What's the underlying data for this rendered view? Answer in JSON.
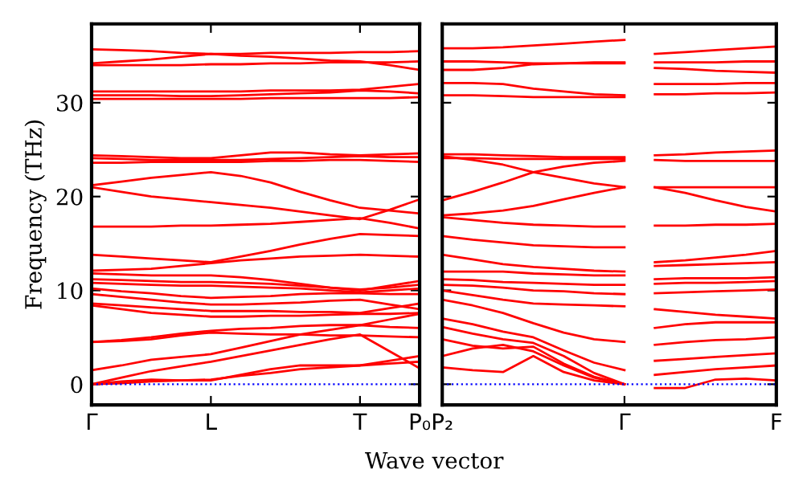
{
  "chart_data": [
    {
      "type": "line",
      "ylabel": "Frequency (THz)",
      "xlabel": "Wave vector",
      "categories": [
        "Γ",
        null,
        null,
        null,
        "L",
        null,
        null,
        null,
        null,
        "T",
        null,
        "P₀"
      ],
      "ylim": [
        -2.2,
        38.4
      ],
      "yticks": [
        0,
        10,
        20,
        30
      ],
      "grid": false,
      "legend": false,
      "line_style": "solid",
      "ref_lines": [
        {
          "axis": "y",
          "value": 0,
          "label": null,
          "color": "#0000ff",
          "line_style": "dotted"
        }
      ],
      "series": [
        {
          "color": "#ff0000",
          "values": [
            35.7,
            35.6,
            35.5,
            35.3,
            35.2,
            35.2,
            35.3,
            35.3,
            35.3,
            35.4,
            35.4,
            35.5
          ]
        },
        {
          "color": "#ff0000",
          "values": [
            34.2,
            34.4,
            34.6,
            34.9,
            35.2,
            35.0,
            34.9,
            34.7,
            34.5,
            34.4,
            34.0,
            33.5
          ]
        },
        {
          "color": "#ff0000",
          "values": [
            34.0,
            34.0,
            34.0,
            34.0,
            34.1,
            34.1,
            34.2,
            34.2,
            34.3,
            34.3,
            34.3,
            34.4
          ]
        },
        {
          "color": "#ff0000",
          "values": [
            31.2,
            31.2,
            31.2,
            31.2,
            31.2,
            31.2,
            31.3,
            31.3,
            31.3,
            31.4,
            31.7,
            32.0
          ]
        },
        {
          "color": "#ff0000",
          "values": [
            30.8,
            30.8,
            30.8,
            30.7,
            30.7,
            30.8,
            30.9,
            31.0,
            31.1,
            31.3,
            31.2,
            31.0
          ]
        },
        {
          "color": "#ff0000",
          "values": [
            30.4,
            30.4,
            30.4,
            30.4,
            30.4,
            30.4,
            30.5,
            30.5,
            30.5,
            30.5,
            30.5,
            30.6
          ]
        },
        {
          "color": "#ff0000",
          "values": [
            24.4,
            24.3,
            24.2,
            24.1,
            24.1,
            24.4,
            24.7,
            24.7,
            24.5,
            24.4,
            24.5,
            24.6
          ]
        },
        {
          "color": "#ff0000",
          "values": [
            24.1,
            24.0,
            23.9,
            23.9,
            23.9,
            23.9,
            24.0,
            24.1,
            24.2,
            24.3,
            24.2,
            24.2
          ]
        },
        {
          "color": "#ff0000",
          "values": [
            23.6,
            23.6,
            23.7,
            23.7,
            23.7,
            23.7,
            23.8,
            23.8,
            23.9,
            23.9,
            23.8,
            23.7
          ]
        },
        {
          "color": "#ff0000",
          "values": [
            21.2,
            21.6,
            22.0,
            22.3,
            22.6,
            22.2,
            21.5,
            20.5,
            19.6,
            18.8,
            18.5,
            18.2
          ]
        },
        {
          "color": "#ff0000",
          "values": [
            21.0,
            20.5,
            20.0,
            19.7,
            19.4,
            19.1,
            18.8,
            18.4,
            18.0,
            17.6,
            18.6,
            19.7
          ]
        },
        {
          "color": "#ff0000",
          "values": [
            16.8,
            16.8,
            16.8,
            16.9,
            16.9,
            17.0,
            17.1,
            17.3,
            17.5,
            17.7,
            17.2,
            16.6
          ]
        },
        {
          "color": "#ff0000",
          "values": [
            13.8,
            13.6,
            13.4,
            13.2,
            13.0,
            13.6,
            14.2,
            14.9,
            15.5,
            16.0,
            15.9,
            15.8
          ]
        },
        {
          "color": "#ff0000",
          "values": [
            12.1,
            12.2,
            12.3,
            12.6,
            12.9,
            13.2,
            13.4,
            13.6,
            13.7,
            13.8,
            13.7,
            13.6
          ]
        },
        {
          "color": "#ff0000",
          "values": [
            11.8,
            11.7,
            11.6,
            11.6,
            11.6,
            11.4,
            11.1,
            10.7,
            10.3,
            10.0,
            10.5,
            11.0
          ]
        },
        {
          "color": "#ff0000",
          "values": [
            11.2,
            11.1,
            11.0,
            10.9,
            10.9,
            10.8,
            10.7,
            10.5,
            10.3,
            10.1,
            10.3,
            10.6
          ]
        },
        {
          "color": "#ff0000",
          "values": [
            10.8,
            10.7,
            10.6,
            10.5,
            10.5,
            10.4,
            10.3,
            10.2,
            10.0,
            9.8,
            10.0,
            10.2
          ]
        },
        {
          "color": "#ff0000",
          "values": [
            10.2,
            9.9,
            9.7,
            9.4,
            9.2,
            9.3,
            9.4,
            9.6,
            9.7,
            9.7,
            9.6,
            9.6
          ]
        },
        {
          "color": "#ff0000",
          "values": [
            9.6,
            9.3,
            9.0,
            8.7,
            8.5,
            8.5,
            8.6,
            8.7,
            8.9,
            9.0,
            8.5,
            8.0
          ]
        },
        {
          "color": "#ff0000",
          "values": [
            8.6,
            8.4,
            8.2,
            8.0,
            7.8,
            7.8,
            7.8,
            7.7,
            7.7,
            7.6,
            8.1,
            8.6
          ]
        },
        {
          "color": "#ff0000",
          "values": [
            8.4,
            8.0,
            7.6,
            7.4,
            7.2,
            7.2,
            7.3,
            7.3,
            7.4,
            7.5,
            7.5,
            7.6
          ]
        },
        {
          "color": "#ff0000",
          "values": [
            4.5,
            4.7,
            5.0,
            5.4,
            5.7,
            5.9,
            6.0,
            6.2,
            6.3,
            6.3,
            6.9,
            7.5
          ]
        },
        {
          "color": "#ff0000",
          "values": [
            4.5,
            4.6,
            4.8,
            5.2,
            5.5,
            5.4,
            5.3,
            5.3,
            5.2,
            5.2,
            5.1,
            5.0
          ]
        },
        {
          "color": "#ff0000",
          "values": [
            1.5,
            2.0,
            2.6,
            2.9,
            3.2,
            3.9,
            4.6,
            5.3,
            5.8,
            6.3,
            6.1,
            6.0
          ]
        },
        {
          "color": "#ff0000",
          "values": [
            0,
            0.7,
            1.4,
            1.9,
            2.4,
            3.0,
            3.6,
            4.2,
            4.8,
            5.3,
            3.5,
            1.7
          ]
        },
        {
          "color": "#ff0000",
          "values": [
            0,
            0.3,
            0.5,
            0.4,
            0.4,
            1.0,
            1.6,
            2.0,
            2.0,
            2.0,
            2.5,
            3.0
          ]
        },
        {
          "color": "#ff0000",
          "values": [
            0,
            0.1,
            0.3,
            0.4,
            0.5,
            0.9,
            1.2,
            1.6,
            1.8,
            2.0,
            2.2,
            2.4
          ]
        }
      ]
    },
    {
      "type": "line",
      "categories": [
        "P₂",
        null,
        null,
        null,
        null,
        null,
        "Γ",
        null,
        null,
        null,
        null,
        "F"
      ],
      "ylim": [
        -2.2,
        38.4
      ],
      "yticks": [
        {
          "value": 0,
          "label": null
        },
        {
          "value": 10,
          "label": null
        },
        {
          "value": 20,
          "label": null
        },
        {
          "value": 30,
          "label": null
        }
      ],
      "tick_labels": "x",
      "grid": false,
      "legend": false,
      "line_style": "solid",
      "ref_lines": [
        {
          "axis": "y",
          "value": 0,
          "label": null,
          "color": "#0000ff",
          "line_style": "dotted"
        }
      ],
      "series": [
        {
          "color": "#ff0000",
          "values": [
            35.8,
            35.8,
            35.9,
            36.1,
            36.3,
            36.5,
            36.7,
            null,
            null,
            null,
            null,
            null
          ]
        },
        {
          "color": "#ff0000",
          "values": [
            34.4,
            34.4,
            34.3,
            34.2,
            34.2,
            34.2,
            34.2,
            null,
            null,
            null,
            null,
            null
          ]
        },
        {
          "color": "#ff0000",
          "values": [
            33.5,
            33.5,
            33.7,
            34.1,
            34.2,
            34.3,
            34.3,
            null,
            null,
            null,
            null,
            null
          ]
        },
        {
          "color": "#ff0000",
          "values": [
            32.1,
            32.1,
            32.0,
            31.5,
            31.2,
            30.9,
            30.8,
            null,
            null,
            null,
            null,
            null
          ]
        },
        {
          "color": "#ff0000",
          "values": [
            30.8,
            30.8,
            30.7,
            30.6,
            30.6,
            30.6,
            30.6,
            null,
            null,
            null,
            null,
            null
          ]
        },
        {
          "color": "#ff0000",
          "values": [
            24.5,
            24.5,
            24.4,
            24.3,
            24.2,
            24.2,
            24.2,
            null,
            null,
            null,
            null,
            null
          ]
        },
        {
          "color": "#ff0000",
          "values": [
            24.1,
            24.1,
            24.0,
            24.0,
            24.0,
            24.0,
            24.0,
            null,
            null,
            null,
            null,
            null
          ]
        },
        {
          "color": "#ff0000",
          "values": [
            24.3,
            23.9,
            23.4,
            22.6,
            22.0,
            21.4,
            21.0,
            null,
            null,
            null,
            null,
            null
          ]
        },
        {
          "color": "#ff0000",
          "values": [
            19.6,
            20.5,
            21.5,
            22.6,
            23.2,
            23.6,
            23.8,
            null,
            null,
            null,
            null,
            null
          ]
        },
        {
          "color": "#ff0000",
          "values": [
            18.0,
            18.2,
            18.5,
            19.0,
            19.7,
            20.4,
            21.0,
            null,
            null,
            null,
            null,
            null
          ]
        },
        {
          "color": "#ff0000",
          "values": [
            17.8,
            17.5,
            17.2,
            17.0,
            16.9,
            16.8,
            16.8,
            null,
            null,
            null,
            null,
            null
          ]
        },
        {
          "color": "#ff0000",
          "values": [
            15.8,
            15.4,
            15.1,
            14.8,
            14.7,
            14.6,
            14.6,
            null,
            null,
            null,
            null,
            null
          ]
        },
        {
          "color": "#ff0000",
          "values": [
            13.8,
            13.3,
            12.8,
            12.5,
            12.3,
            12.1,
            12.0,
            null,
            null,
            null,
            null,
            null
          ]
        },
        {
          "color": "#ff0000",
          "values": [
            12.0,
            12.0,
            12.0,
            11.8,
            11.7,
            11.6,
            11.6,
            null,
            null,
            null,
            null,
            null
          ]
        },
        {
          "color": "#ff0000",
          "values": [
            11.2,
            11.1,
            10.9,
            10.8,
            10.7,
            10.6,
            10.6,
            null,
            null,
            null,
            null,
            null
          ]
        },
        {
          "color": "#ff0000",
          "values": [
            10.6,
            10.5,
            10.3,
            10.0,
            9.9,
            9.7,
            9.6,
            null,
            null,
            null,
            null,
            null
          ]
        },
        {
          "color": "#ff0000",
          "values": [
            10.0,
            9.5,
            9.0,
            8.6,
            8.5,
            8.4,
            8.3,
            null,
            null,
            null,
            null,
            null
          ]
        },
        {
          "color": "#ff0000",
          "values": [
            9.0,
            8.4,
            7.6,
            6.5,
            5.5,
            4.8,
            4.5,
            null,
            null,
            null,
            null,
            null
          ]
        },
        {
          "color": "#ff0000",
          "values": [
            7.0,
            6.4,
            5.6,
            5.0,
            3.6,
            2.3,
            1.5,
            null,
            null,
            null,
            null,
            null
          ]
        },
        {
          "color": "#ff0000",
          "values": [
            6.1,
            5.4,
            4.8,
            4.4,
            3.0,
            1.2,
            0.0,
            null,
            null,
            null,
            null,
            null
          ]
        },
        {
          "color": "#ff0000",
          "values": [
            4.8,
            4.1,
            3.8,
            4.0,
            2.2,
            0.8,
            0.0,
            null,
            null,
            null,
            null,
            null
          ]
        },
        {
          "color": "#ff0000",
          "values": [
            3.0,
            3.8,
            4.2,
            3.5,
            2.0,
            0.7,
            0.0,
            null,
            null,
            null,
            null,
            null
          ]
        },
        {
          "color": "#ff0000",
          "values": [
            1.8,
            1.5,
            1.3,
            3.0,
            1.3,
            0.4,
            0.0,
            null,
            null,
            null,
            null,
            null
          ]
        },
        {
          "color": "#ff0000",
          "values": [
            null,
            null,
            null,
            null,
            null,
            null,
            null,
            35.2,
            35.4,
            35.6,
            35.8,
            36.0
          ]
        },
        {
          "color": "#ff0000",
          "values": [
            null,
            null,
            null,
            null,
            null,
            null,
            null,
            34.3,
            34.3,
            34.3,
            34.4,
            34.4
          ]
        },
        {
          "color": "#ff0000",
          "values": [
            null,
            null,
            null,
            null,
            null,
            null,
            null,
            33.7,
            33.6,
            33.4,
            33.3,
            33.2
          ]
        },
        {
          "color": "#ff0000",
          "values": [
            null,
            null,
            null,
            null,
            null,
            null,
            null,
            32.0,
            32.0,
            32.0,
            32.1,
            32.1
          ]
        },
        {
          "color": "#ff0000",
          "values": [
            null,
            null,
            null,
            null,
            null,
            null,
            null,
            30.9,
            30.9,
            31.0,
            31.0,
            31.1
          ]
        },
        {
          "color": "#ff0000",
          "values": [
            null,
            null,
            null,
            null,
            null,
            null,
            null,
            24.4,
            24.5,
            24.7,
            24.8,
            24.9
          ]
        },
        {
          "color": "#ff0000",
          "values": [
            null,
            null,
            null,
            null,
            null,
            null,
            null,
            23.9,
            23.8,
            23.8,
            23.8,
            23.8
          ]
        },
        {
          "color": "#ff0000",
          "values": [
            null,
            null,
            null,
            null,
            null,
            null,
            null,
            21.0,
            20.4,
            19.6,
            18.9,
            18.4
          ]
        },
        {
          "color": "#ff0000",
          "values": [
            null,
            null,
            null,
            null,
            null,
            null,
            null,
            21.0,
            21.0,
            21.0,
            21.0,
            21.0
          ]
        },
        {
          "color": "#ff0000",
          "values": [
            null,
            null,
            null,
            null,
            null,
            null,
            null,
            16.9,
            16.9,
            17.0,
            17.0,
            17.1
          ]
        },
        {
          "color": "#ff0000",
          "values": [
            null,
            null,
            null,
            null,
            null,
            null,
            null,
            13.0,
            13.2,
            13.5,
            13.8,
            14.2
          ]
        },
        {
          "color": "#ff0000",
          "values": [
            null,
            null,
            null,
            null,
            null,
            null,
            null,
            12.6,
            12.7,
            12.8,
            12.9,
            13.0
          ]
        },
        {
          "color": "#ff0000",
          "values": [
            null,
            null,
            null,
            null,
            null,
            null,
            null,
            11.2,
            11.3,
            11.3,
            11.3,
            11.4
          ]
        },
        {
          "color": "#ff0000",
          "values": [
            null,
            null,
            null,
            null,
            null,
            null,
            null,
            10.7,
            10.8,
            10.8,
            10.9,
            11.0
          ]
        },
        {
          "color": "#ff0000",
          "values": [
            null,
            null,
            null,
            null,
            null,
            null,
            null,
            9.7,
            9.8,
            9.9,
            10.0,
            10.1
          ]
        },
        {
          "color": "#ff0000",
          "values": [
            null,
            null,
            null,
            null,
            null,
            null,
            null,
            8.0,
            7.7,
            7.4,
            7.2,
            7.0
          ]
        },
        {
          "color": "#ff0000",
          "values": [
            null,
            null,
            null,
            null,
            null,
            null,
            null,
            6.0,
            6.4,
            6.6,
            6.6,
            6.6
          ]
        },
        {
          "color": "#ff0000",
          "values": [
            null,
            null,
            null,
            null,
            null,
            null,
            null,
            4.2,
            4.5,
            4.7,
            4.8,
            5.0
          ]
        },
        {
          "color": "#ff0000",
          "values": [
            null,
            null,
            null,
            null,
            null,
            null,
            null,
            2.5,
            2.7,
            2.9,
            3.1,
            3.3
          ]
        },
        {
          "color": "#ff0000",
          "values": [
            null,
            null,
            null,
            null,
            null,
            null,
            null,
            1.0,
            1.3,
            1.6,
            1.8,
            2.0
          ]
        },
        {
          "color": "#ff0000",
          "values": [
            null,
            null,
            null,
            null,
            null,
            null,
            null,
            -0.4,
            -0.4,
            0.5,
            0.6,
            0.4
          ]
        }
      ]
    }
  ]
}
